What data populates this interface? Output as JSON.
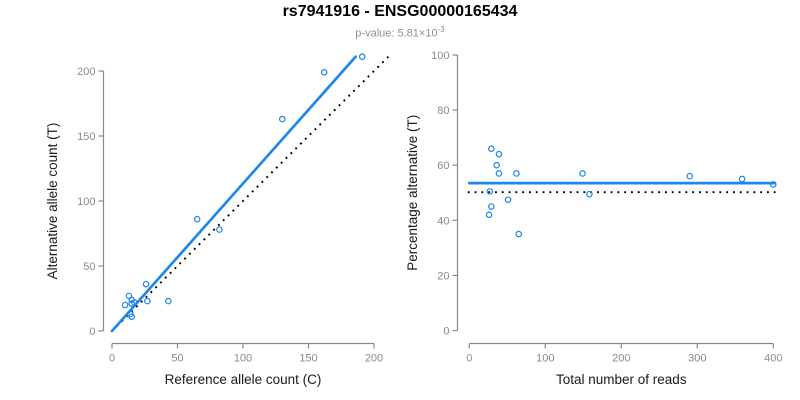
{
  "header": {
    "title": "rs7941916 - ENSG00000165434",
    "subtitle_prefix": "p-value: 5.81×10",
    "subtitle_exponent": "-3"
  },
  "colors": {
    "accent_blue": "#1E88E8",
    "dotted_black": "#000000",
    "axis_gray": "#8A8A8A",
    "tick_label_gray": "#8A8A8A",
    "axis_title_black": "#1A1A1A",
    "subtitle_gray": "#8F8F8F"
  },
  "chart_data": [
    {
      "id": "allele-counts-scatter",
      "type": "scatter",
      "xlabel": "Reference allele count (C)",
      "ylabel": "Alternative allele count (T)",
      "xlim": [
        0,
        200
      ],
      "ylim": [
        0,
        200
      ],
      "xticks": [
        0,
        50,
        100,
        150,
        200
      ],
      "yticks": [
        0,
        50,
        100,
        150,
        200
      ],
      "grid": false,
      "points": [
        [
          10,
          20
        ],
        [
          13,
          27
        ],
        [
          15,
          24
        ],
        [
          15,
          21
        ],
        [
          17,
          22
        ],
        [
          14,
          13
        ],
        [
          15,
          11
        ],
        [
          26,
          36
        ],
        [
          27,
          23
        ],
        [
          43,
          23
        ],
        [
          65,
          86
        ],
        [
          82,
          78
        ],
        [
          130,
          163
        ],
        [
          162,
          199
        ],
        [
          191,
          211
        ]
      ],
      "lines": [
        {
          "name": "identity-line",
          "style": "dotted",
          "from": [
            0,
            0
          ],
          "to": [
            211,
            211
          ]
        },
        {
          "name": "regression-line",
          "style": "solid",
          "from": [
            0,
            0
          ],
          "to": [
            186,
            211
          ]
        }
      ]
    },
    {
      "id": "percentage-scatter",
      "type": "scatter",
      "xlabel": "Total number of reads",
      "ylabel": "Percentage alternative (T)",
      "xlim": [
        0,
        400
      ],
      "ylim": [
        0,
        100
      ],
      "xticks": [
        0,
        100,
        200,
        300,
        400
      ],
      "yticks": [
        0,
        20,
        40,
        60,
        80,
        100
      ],
      "grid": false,
      "points": [
        [
          29,
          66
        ],
        [
          39,
          64
        ],
        [
          36,
          60
        ],
        [
          39,
          57
        ],
        [
          62,
          57
        ],
        [
          149,
          57
        ],
        [
          290,
          56
        ],
        [
          359,
          55
        ],
        [
          400,
          53
        ],
        [
          27,
          50.5
        ],
        [
          158,
          49.5
        ],
        [
          51,
          47.5
        ],
        [
          29,
          45
        ],
        [
          26,
          42
        ],
        [
          65,
          35
        ]
      ],
      "lines": [
        {
          "name": "expected-50pct-line",
          "style": "dotted",
          "from": [
            -2,
            50.2
          ],
          "to": [
            403,
            50.2
          ]
        },
        {
          "name": "mean-percentage-line",
          "style": "solid",
          "from": [
            0,
            53.5
          ],
          "to": [
            402,
            53.5
          ]
        }
      ]
    }
  ]
}
